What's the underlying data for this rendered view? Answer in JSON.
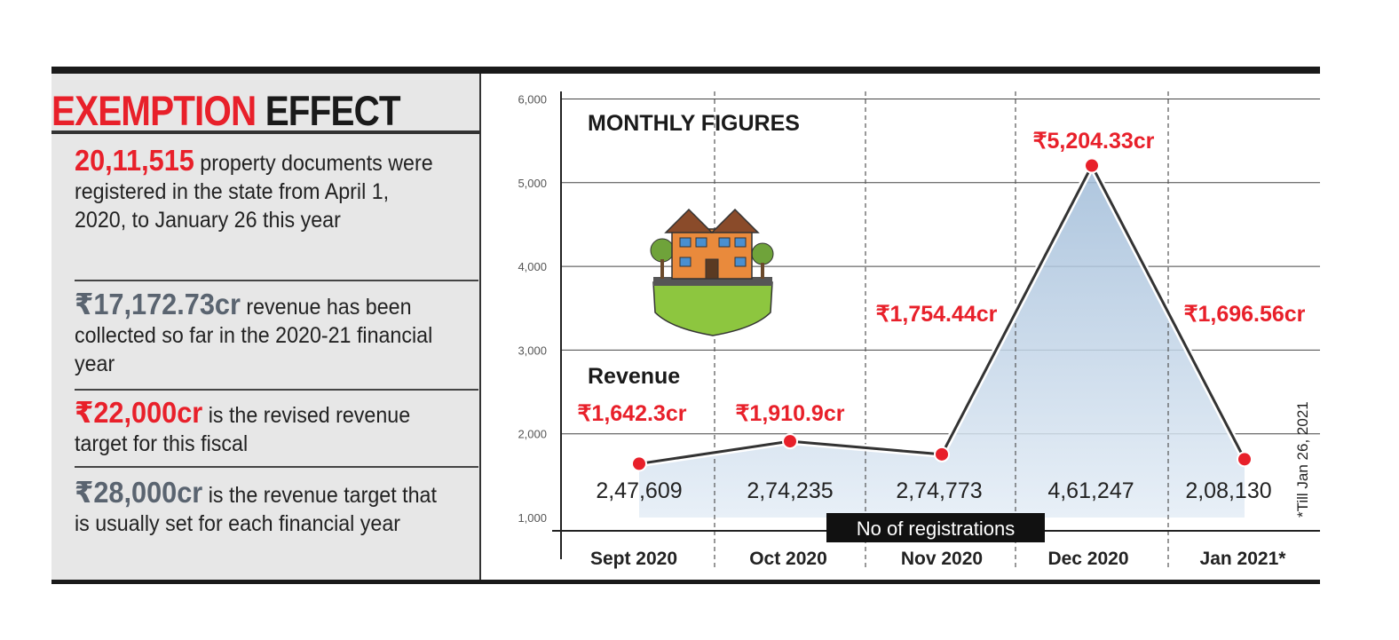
{
  "left_panel": {
    "title_red": "EXEMPTION",
    "title_black": "EFFECT",
    "facts": [
      {
        "highlight": "20,11,515",
        "text": " property documents were registered in the state from April 1, 2020, to January 26 this year"
      },
      {
        "highlight": "₹17,172.73cr",
        "text": " revenue has been collected so far in the 2020-21 financial year"
      },
      {
        "highlight": "₹22,000cr",
        "text": " is the revised revenue target for this fiscal"
      },
      {
        "highlight": "₹28,000cr",
        "text": " is the revenue target that is usually set for each financial year"
      }
    ]
  },
  "chart_data": {
    "type": "line",
    "title": "MONTHLY FIGURES",
    "series_label": "Revenue",
    "categories": [
      "Sept 2020",
      "Oct 2020",
      "Nov 2020",
      "Dec 2020",
      "Jan 2021*"
    ],
    "revenue_values": [
      1642.3,
      1910.9,
      1754.44,
      5204.33,
      1696.56
    ],
    "revenue_labels": [
      "₹1,642.3cr",
      "₹1,910.9cr",
      "₹1,754.44cr",
      "₹5,204.33cr",
      "₹1,696.56cr"
    ],
    "registrations": [
      "2,47,609",
      "2,74,235",
      "2,74,773",
      "4,61,247",
      "2,08,130"
    ],
    "registrations_label": "No of registrations",
    "yticks": [
      1000,
      2000,
      3000,
      4000,
      5000,
      6000
    ],
    "ytick_labels": [
      "1,000",
      "2,000",
      "3,000",
      "4,000",
      "5,000",
      "6,000"
    ],
    "ylim": [
      1000,
      6000
    ],
    "grid": true,
    "footnote": "*Till Jan 26, 2021",
    "colors": {
      "accent": "#e8202a",
      "fill": "#c9d9ea",
      "line": "#333333"
    }
  }
}
